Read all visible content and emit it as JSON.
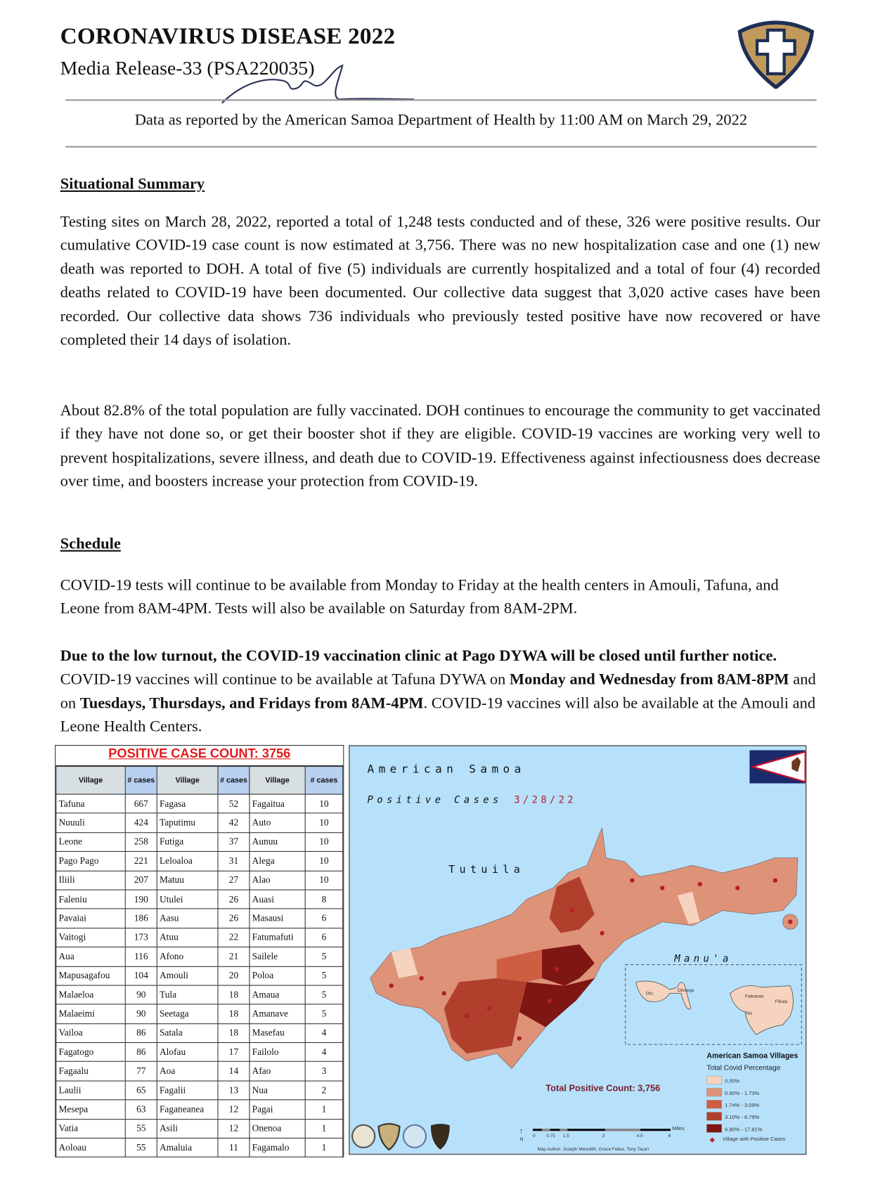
{
  "header": {
    "title": "CORONAVIRUS DISEASE 2022",
    "subtitle": "Media Release-33 (PSA220035)",
    "data_line": "Data as reported by the American Samoa Department of Health by 11:00 AM on March 29, 2022",
    "logo_icon": "health-department-shield-icon"
  },
  "situational_summary": {
    "heading": "Situational Summary",
    "p1": "Testing sites on March 28, 2022, reported a total of 1,248 tests conducted and of these, 326 were positive results. Our cumulative COVID-19 case count is now estimated at 3,756. There was no new hospitalization case and one (1) new death was reported to DOH. A total of five (5) individuals are currently hospitalized and a total of four (4) recorded deaths related to COVID-19 have been documented. Our collective data suggest that 3,020 active cases have been recorded. Our collective data shows 736 individuals who previously tested positive have now recovered or have completed their 14 days of isolation.",
    "p2": "About 82.8% of the total population are fully vaccinated. DOH continues to encourage the community to get vaccinated if they have not done so, or get their booster shot if they are eligible. COVID-19 vaccines are working very well to prevent hospitalizations, severe illness, and death due to COVID-19. Effectiveness against infectiousness does decrease over time, and boosters increase your protection from COVID-19."
  },
  "schedule": {
    "heading": "Schedule",
    "p1": "COVID-19 tests will continue to be available from Monday to Friday at the health centers in Amouli, Tafuna, and Leone from 8AM-4PM. Tests will also be available on Saturday from 8AM-2PM.",
    "p2_bold1": "Due to the low turnout, the COVID-19 vaccination clinic at Pago DYWA will be closed until further notice.",
    "p2_t1": " COVID-19 vaccines will continue to be available at Tafuna DYWA on ",
    "p2_bold2": "Monday and Wednesday from 8AM-8PM",
    "p2_t2": " and on ",
    "p2_bold3": "Tuesdays, Thursdays, and Fridays from 8AM-4PM",
    "p2_t3": ". COVID-19 vaccines will also be available at the Amouli and Leone Health Centers."
  },
  "case_table": {
    "title": "POSITIVE CASE COUNT: 3756",
    "headers": [
      "Village",
      "# cases",
      "Village",
      "# cases",
      "Village",
      "# cases"
    ],
    "rows": [
      [
        "Tafuna",
        "667",
        "Fagasa",
        "52",
        "Fagaitua",
        "10"
      ],
      [
        "Nuuuli",
        "424",
        "Taputimu",
        "42",
        "Auto",
        "10"
      ],
      [
        "Leone",
        "258",
        "Futiga",
        "37",
        "Aunuu",
        "10"
      ],
      [
        "Pago Pago",
        "221",
        "Leloaloa",
        "31",
        "Alega",
        "10"
      ],
      [
        "Iliili",
        "207",
        "Matuu",
        "27",
        "Alao",
        "10"
      ],
      [
        "Faleniu",
        "190",
        "Utulei",
        "26",
        "Auasi",
        "8"
      ],
      [
        "Pavaiai",
        "186",
        "Aasu",
        "26",
        "Masausi",
        "6"
      ],
      [
        "Vaitogi",
        "173",
        "Atuu",
        "22",
        "Fatumafuti",
        "6"
      ],
      [
        "Aua",
        "116",
        "Afono",
        "21",
        "Sailele",
        "5"
      ],
      [
        "Mapusagafou",
        "104",
        "Amouli",
        "20",
        "Poloa",
        "5"
      ],
      [
        "Malaeloa",
        "90",
        "Tula",
        "18",
        "Amaua",
        "5"
      ],
      [
        "Malaeimi",
        "90",
        "Seetaga",
        "18",
        "Amanave",
        "5"
      ],
      [
        "Vailoa",
        "86",
        "Satala",
        "18",
        "Masefau",
        "4"
      ],
      [
        "Fagatogo",
        "86",
        "Alofau",
        "17",
        "Failolo",
        "4"
      ],
      [
        "Fagaalu",
        "77",
        "Aoa",
        "14",
        "Afao",
        "3"
      ],
      [
        "Laulii",
        "65",
        "Fagalii",
        "13",
        "Nua",
        "2"
      ],
      [
        "Mesepa",
        "63",
        "Faganeanea",
        "12",
        "Pagai",
        "1"
      ],
      [
        "Vatia",
        "55",
        "Asili",
        "12",
        "Onenoa",
        "1"
      ],
      [
        "Aoloau",
        "55",
        "Amaluia",
        "11",
        "Fagamalo",
        "1"
      ]
    ]
  },
  "map": {
    "title": "American Samoa",
    "subtitle": "Positive Cases",
    "date": "3/28/22",
    "island_label": "Tutuila",
    "manua_label": "Manu'a",
    "manua_islands": [
      "Ofu",
      "Olosega",
      "Faleasao",
      "Fitiuta",
      "Tau"
    ],
    "total_label": "Total Positive Count: 3,756",
    "legend": {
      "title": "American Samoa Villages",
      "subtitle": "Total Covid Percentage",
      "items": [
        {
          "label": "0.00%",
          "color": "#f6d3bf"
        },
        {
          "label": "0.60% - 1.73%",
          "color": "#de9379"
        },
        {
          "label": "1.74% - 3.09%",
          "color": "#cd5e42"
        },
        {
          "label": "3.10% - 6.79%",
          "color": "#b0402c"
        },
        {
          "label": "6.80% - 17.81%",
          "color": "#7e1614"
        }
      ],
      "marker_label": "Village with Positive Cases",
      "marker_color": "#b3202a"
    },
    "scale": {
      "ticks": [
        "0",
        "0.75",
        "1.5",
        "3",
        "4.5",
        "6"
      ],
      "unit": "Miles"
    },
    "north_label": "N",
    "author": "Map Author: Joseph Meredith, Grace Felise, Tony Taua'i",
    "flag_icon": "american-samoa-flag-icon",
    "sea_color": "#b7e1fb"
  }
}
